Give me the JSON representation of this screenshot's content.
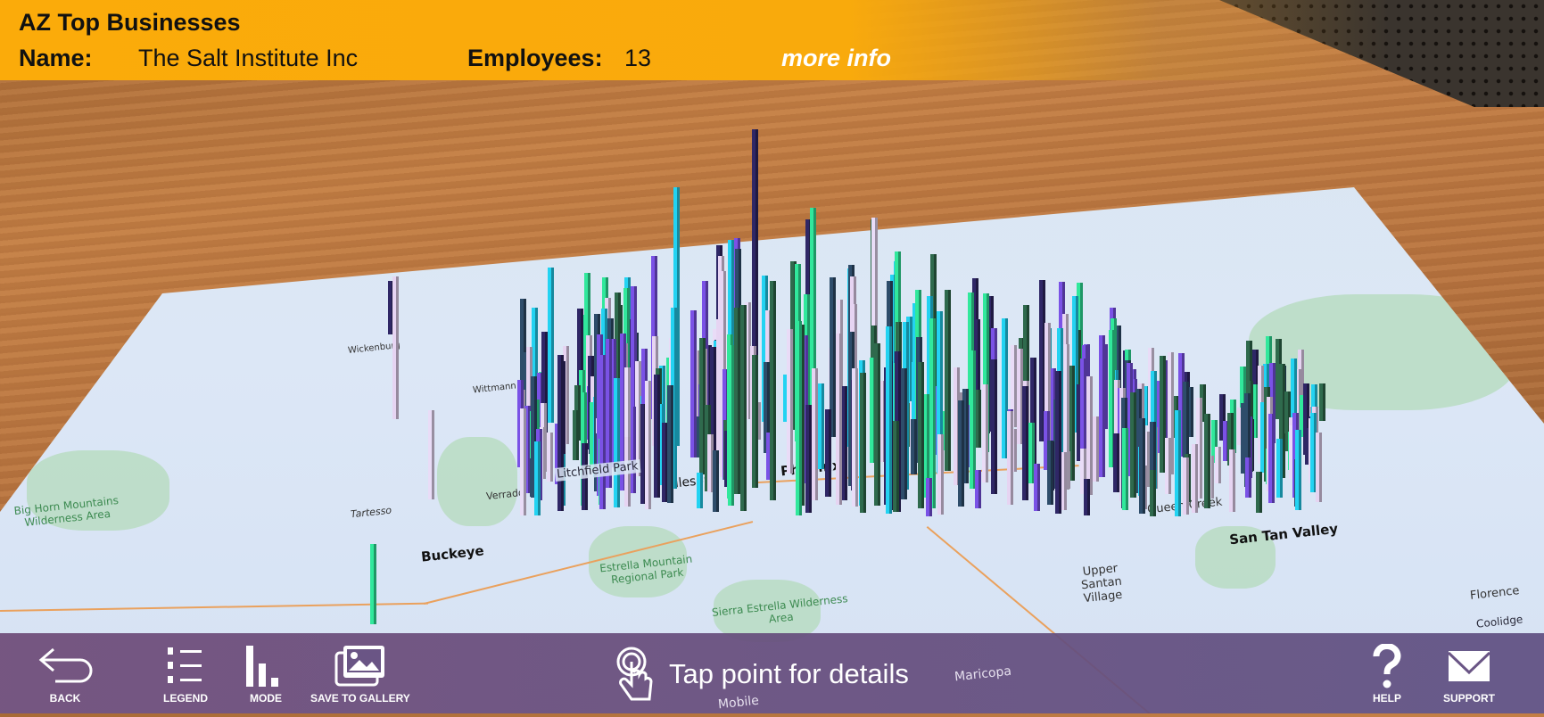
{
  "header": {
    "title": "AZ Top Businesses",
    "name_label": "Name:",
    "name_value": "The Salt Institute Inc",
    "employees_label": "Employees:",
    "employees_value": "13",
    "more_info": "more info",
    "bg_color": "#fbab0a"
  },
  "map": {
    "labels": {
      "phoenix": "Phoenix",
      "tolleson": "Tolleson",
      "buckeye": "Buckeye",
      "san_tan": "San Tan Valley",
      "queen_creek": "Queen Creek",
      "upper_santan": "Upper Santan Village",
      "florence": "Florence",
      "estrella": "Estrella Mountain Regional Park",
      "sierra": "Sierra Estrella Wilderness Area",
      "bighorn": "Big Horn Mountains Wilderness Area",
      "tartesso": "Tartesso",
      "verrado": "Verrado",
      "litchfield": "Litchfield Park",
      "wittmann": "Wittmann",
      "wickenburg": "Wickenburg",
      "mobile": "Mobile",
      "maricopa": "Maricopa",
      "coolidge": "Coolidge"
    },
    "bar_colors": [
      "#e6d4f2",
      "#2f2766",
      "#23d3f2",
      "#2f6a4d",
      "#31e89c",
      "#2e4d6b",
      "#7a52e6",
      "#e9dcf7"
    ]
  },
  "toolbar": {
    "back": "BACK",
    "legend": "LEGEND",
    "mode": "MODE",
    "save": "SAVE TO GALLERY",
    "hint": "Tap point for details",
    "help": "HELP",
    "support": "SUPPORT"
  }
}
